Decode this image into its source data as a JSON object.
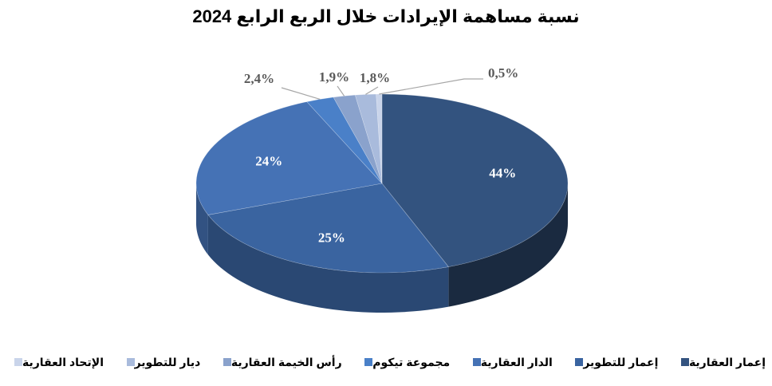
{
  "chart_data": {
    "type": "pie",
    "title": "نسبة مساهمة الإيرادات خلال الربع الرابع 2024",
    "legend_position": "bottom",
    "slices": [
      {
        "name": "إعمار العقارية",
        "value": 44,
        "label": "44%",
        "color": "#33537f"
      },
      {
        "name": "إعمار للتطوير",
        "value": 25,
        "label": "25%",
        "color": "#3a64a0"
      },
      {
        "name": "الدار العقارية",
        "value": 24,
        "label": "24%",
        "color": "#4572b5"
      },
      {
        "name": "مجموعة تيكوم",
        "value": 2.4,
        "label": "2,4%",
        "color": "#4a80c8"
      },
      {
        "name": "رأس الخيمة العقارية",
        "value": 1.9,
        "label": "1,9%",
        "color": "#8aa2cc"
      },
      {
        "name": "ديار للتطوير",
        "value": 1.8,
        "label": "1,8%",
        "color": "#a9bbdc"
      },
      {
        "name": "الإتحاد العقارية",
        "value": 0.5,
        "label": "0,5%",
        "color": "#c9d4ea"
      }
    ]
  }
}
